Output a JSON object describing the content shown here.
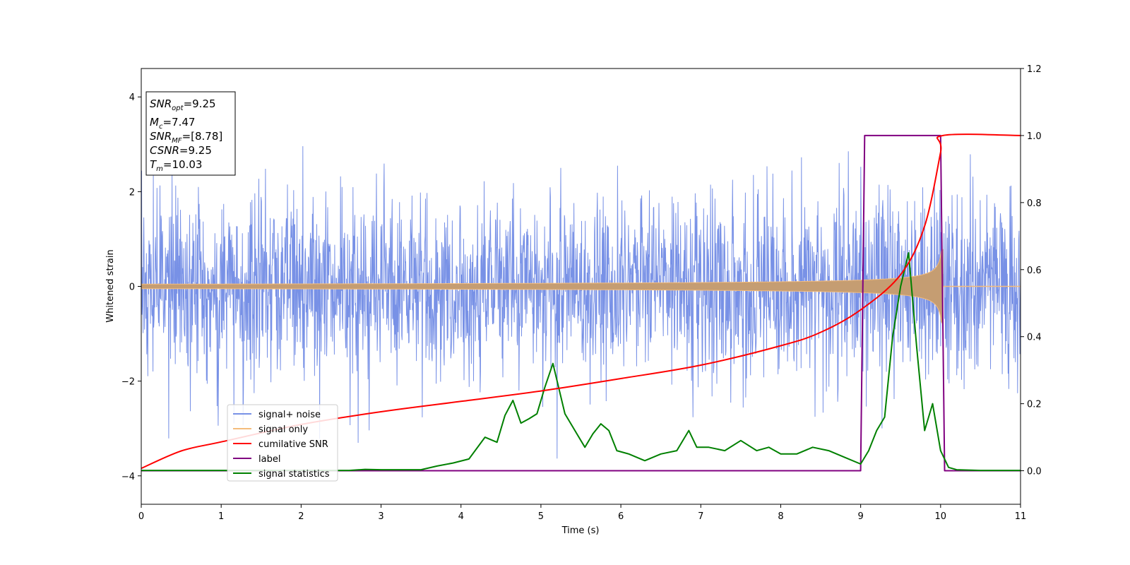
{
  "chart_data": {
    "type": "line",
    "xlabel": "Time (s)",
    "ylabel": "Whitened strain",
    "xlim": [
      0,
      11
    ],
    "ylim": [
      -4.6,
      4.6
    ],
    "y2lim": [
      -0.1,
      1.2
    ],
    "x_ticks": [
      "0",
      "1",
      "2",
      "3",
      "4",
      "5",
      "6",
      "7",
      "8",
      "9",
      "10",
      "11"
    ],
    "y_ticks": [
      "−4",
      "−2",
      "0",
      "2",
      "4"
    ],
    "y2_ticks": [
      "0.0",
      "0.2",
      "0.4",
      "0.6",
      "0.8",
      "1.0",
      "1.2"
    ],
    "grid": false,
    "legend_position": "lower-left",
    "colors": {
      "signal_noise": "#7891e6",
      "signal_only": "#f4bc7c",
      "signal_only_fill": "#c59d72",
      "cumulative_snr": "#ff0000",
      "label": "#800080",
      "signal_statistics": "#008000"
    },
    "info_box": {
      "snr_opt_label": "SNR",
      "snr_opt_sub": "opt",
      "snr_opt_value": "=9.25",
      "mc_label": "M",
      "mc_sub": "c",
      "mc_value": "=7.47",
      "snr_mf_label": "SNR",
      "snr_mf_sub": "MF",
      "snr_mf_value": "=[8.78]",
      "csnr_label": "CSNR",
      "csnr_value": "=9.25",
      "tm_label": "T",
      "tm_sub": "m",
      "tm_value": "=10.03"
    },
    "series": [
      {
        "name": "signal+ noise",
        "axis": "left",
        "description": "whitened noise with amplitude envelope about ±2.7, peaks up to ~4.1",
        "envelope": [
          -2.7,
          2.7
        ]
      },
      {
        "name": "signal only",
        "axis": "left",
        "chirp": {
          "t_start": 0,
          "t_merger": 10.03,
          "amp_start": 0.05,
          "amp_merger": 1.0
        }
      },
      {
        "name": "cumilative SNR",
        "axis": "right",
        "x": [
          0,
          0.5,
          1,
          2,
          3,
          4,
          5,
          6,
          7,
          8,
          8.5,
          9,
          9.5,
          9.8,
          10.0,
          10.03,
          11
        ],
        "y": [
          0.007,
          0.059,
          0.086,
          0.138,
          0.176,
          0.207,
          0.238,
          0.275,
          0.315,
          0.373,
          0.413,
          0.48,
          0.585,
          0.73,
          0.95,
          1.0,
          1.0
        ]
      },
      {
        "name": "label",
        "axis": "right",
        "x": [
          0,
          9.0,
          9.05,
          10.0,
          10.05,
          11
        ],
        "y": [
          0,
          0,
          1,
          1,
          0,
          0
        ]
      },
      {
        "name": "signal statistics",
        "axis": "right",
        "x": [
          0,
          1,
          2,
          2.6,
          2.8,
          3.0,
          3.5,
          3.7,
          3.9,
          4.1,
          4.3,
          4.45,
          4.55,
          4.65,
          4.75,
          4.85,
          4.95,
          5.05,
          5.15,
          5.3,
          5.45,
          5.55,
          5.65,
          5.75,
          5.85,
          5.95,
          6.1,
          6.3,
          6.5,
          6.7,
          6.85,
          6.95,
          7.1,
          7.3,
          7.5,
          7.7,
          7.85,
          8.0,
          8.2,
          8.4,
          8.6,
          8.8,
          9.0,
          9.1,
          9.2,
          9.3,
          9.4,
          9.5,
          9.6,
          9.7,
          9.8,
          9.9,
          10.0,
          10.1,
          10.2,
          10.5,
          11
        ],
        "y": [
          0.001,
          0.001,
          0.001,
          0.001,
          0.004,
          0.003,
          0.003,
          0.014,
          0.023,
          0.035,
          0.1,
          0.085,
          0.165,
          0.21,
          0.142,
          0.155,
          0.17,
          0.25,
          0.32,
          0.17,
          0.11,
          0.07,
          0.11,
          0.14,
          0.12,
          0.06,
          0.05,
          0.03,
          0.05,
          0.06,
          0.12,
          0.07,
          0.07,
          0.06,
          0.09,
          0.06,
          0.07,
          0.05,
          0.05,
          0.07,
          0.06,
          0.04,
          0.02,
          0.06,
          0.12,
          0.16,
          0.4,
          0.55,
          0.65,
          0.37,
          0.12,
          0.2,
          0.06,
          0.01,
          0.003,
          0.001,
          0.001
        ]
      }
    ]
  },
  "legend": {
    "entries": [
      {
        "label": "signal+ noise",
        "color": "#7891e6"
      },
      {
        "label": "signal only",
        "color": "#f4bc7c"
      },
      {
        "label": "cumilative SNR",
        "color": "#ff0000"
      },
      {
        "label": "label",
        "color": "#800080"
      },
      {
        "label": "signal statistics",
        "color": "#008000"
      }
    ]
  }
}
